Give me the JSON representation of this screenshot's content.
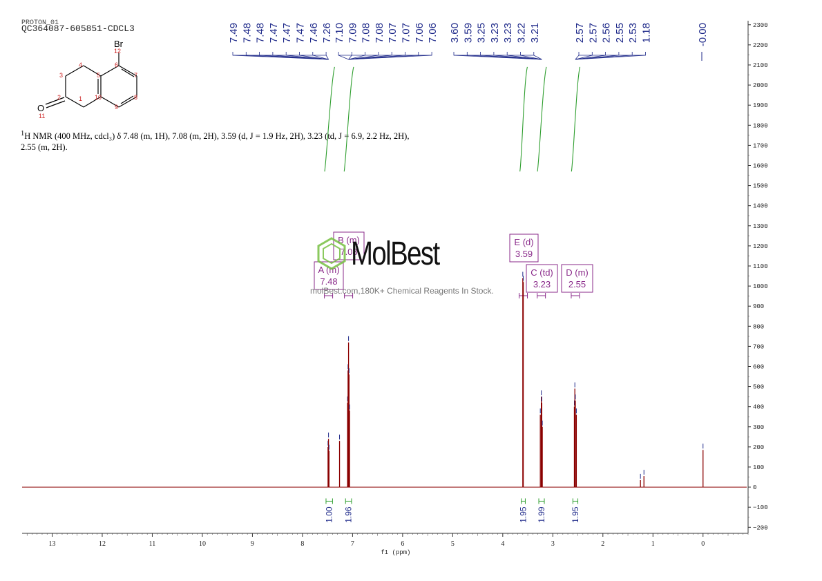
{
  "header": {
    "line1": "PROTON_01",
    "line2": "QC364087-605851-CDCL3"
  },
  "structure": {
    "substituent": "Br",
    "oxygen": "O",
    "atom_numbers": [
      "1",
      "2",
      "3",
      "4",
      "5",
      "6",
      "7",
      "8",
      "9",
      "10",
      "11",
      "12"
    ]
  },
  "nmr_description": {
    "sup": "1",
    "text": "H NMR (400 MHz, cdcl₃) δ 7.48 (m, 1H), 7.08 (m, 2H), 3.59 (d, J = 1.9 Hz, 2H), 3.23 (td, J = 6.9, 2.2 Hz, 2H), 2.55 (m, 2H)."
  },
  "watermark": {
    "brand": "MolBest",
    "tagline": "molBest.com,180K+ Chemical Reagents In Stock."
  },
  "colors": {
    "spectrum": "#8b0000",
    "peak_labels": "#1f2a8a",
    "integrals": "#2e9e2e",
    "multiplet_boxes": "#8a2a8a",
    "logo": "#77c043"
  },
  "chart_data": {
    "type": "line",
    "title": "",
    "xlabel": "f1 (ppm)",
    "ylabel": "",
    "xlim": [
      13.6,
      -0.9
    ],
    "ylim": [
      -230,
      2320
    ],
    "x_ticks": [
      13,
      12,
      11,
      10,
      9,
      8,
      7,
      6,
      5,
      4,
      3,
      2,
      1,
      0
    ],
    "y_ticks": [
      -200,
      -100,
      0,
      100,
      200,
      300,
      400,
      500,
      600,
      700,
      800,
      900,
      1000,
      1100,
      1200,
      1300,
      1400,
      1500,
      1600,
      1700,
      1800,
      1900,
      2000,
      2100,
      2200,
      2300
    ],
    "peak_labels": [
      {
        "group": 1,
        "labels": [
          "7.49",
          "7.48",
          "7.48",
          "7.47",
          "7.47",
          "7.47",
          "7.46",
          "7.26"
        ],
        "anchor": 7.48
      },
      {
        "group": 2,
        "labels": [
          "7.10",
          "7.09",
          "7.08",
          "7.08",
          "7.07",
          "7.07",
          "7.06",
          "7.06"
        ],
        "anchor": 7.08
      },
      {
        "group": 3,
        "labels": [
          "3.60",
          "3.59",
          "3.25",
          "3.23",
          "3.23",
          "3.22",
          "3.21"
        ],
        "anchor": 3.22
      },
      {
        "group": 4,
        "labels": [
          "2.57",
          "2.57",
          "2.56",
          "2.55",
          "2.53",
          "1.18"
        ],
        "anchor": 2.55
      },
      {
        "group": 5,
        "labels": [
          "-0.00"
        ],
        "anchor": 0.0
      }
    ],
    "peaks": [
      {
        "ppm": 7.49,
        "height": 200
      },
      {
        "ppm": 7.48,
        "height": 240
      },
      {
        "ppm": 7.47,
        "height": 180
      },
      {
        "ppm": 7.26,
        "height": 230
      },
      {
        "ppm": 7.1,
        "height": 420
      },
      {
        "ppm": 7.09,
        "height": 580
      },
      {
        "ppm": 7.08,
        "height": 720
      },
      {
        "ppm": 7.07,
        "height": 560
      },
      {
        "ppm": 7.06,
        "height": 380
      },
      {
        "ppm": 3.6,
        "height": 1040
      },
      {
        "ppm": 3.59,
        "height": 1020
      },
      {
        "ppm": 3.25,
        "height": 360
      },
      {
        "ppm": 3.23,
        "height": 450
      },
      {
        "ppm": 3.22,
        "height": 420
      },
      {
        "ppm": 3.21,
        "height": 300
      },
      {
        "ppm": 2.57,
        "height": 400
      },
      {
        "ppm": 2.56,
        "height": 490
      },
      {
        "ppm": 2.55,
        "height": 430
      },
      {
        "ppm": 2.53,
        "height": 360
      },
      {
        "ppm": 1.25,
        "height": 35
      },
      {
        "ppm": 1.18,
        "height": 55
      },
      {
        "ppm": 0.0,
        "height": 185
      }
    ],
    "integrals": [
      {
        "from": 7.53,
        "to": 7.4,
        "value": "1.00"
      },
      {
        "from": 7.14,
        "to": 7.02,
        "value": "1.96"
      },
      {
        "from": 3.63,
        "to": 3.55,
        "value": "1.95"
      },
      {
        "from": 3.28,
        "to": 3.17,
        "value": "1.99"
      },
      {
        "from": 2.6,
        "to": 2.5,
        "value": "1.95"
      }
    ],
    "multiplets": [
      {
        "letter": "A (m)",
        "shift": "7.48",
        "ppm": 7.48
      },
      {
        "letter": "B (m)",
        "shift": "7.08",
        "ppm": 7.08
      },
      {
        "letter": "E (d)",
        "shift": "3.59",
        "ppm": 3.59
      },
      {
        "letter": "C (td)",
        "shift": "3.23",
        "ppm": 3.23
      },
      {
        "letter": "D (m)",
        "shift": "2.55",
        "ppm": 2.55
      }
    ]
  }
}
